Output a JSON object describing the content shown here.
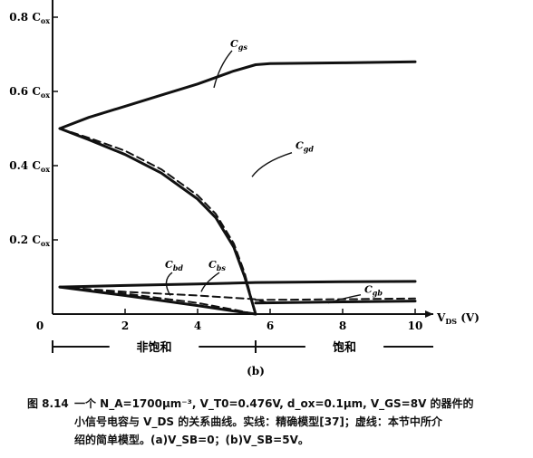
{
  "chart_data": {
    "type": "line",
    "x_axis": {
      "label": "V_DS (V)",
      "ticks": [
        0,
        2,
        4,
        6,
        8,
        10
      ],
      "range": [
        0,
        10.5
      ]
    },
    "y_axis": {
      "unit": "C_ox",
      "ticks": [
        {
          "value": 0.2,
          "label": "0.2 C_ox"
        },
        {
          "value": 0.4,
          "label": "0.4 C_ox"
        },
        {
          "value": 0.6,
          "label": "0.6 C_ox"
        },
        {
          "value": 0.8,
          "label": "0.8 C_ox"
        }
      ],
      "range": [
        0,
        0.85
      ]
    },
    "series": [
      {
        "name": "C_gs",
        "style": "solid",
        "x": [
          0.2,
          1,
          2,
          3,
          4,
          5,
          5.6,
          6,
          8,
          10
        ],
        "y": [
          0.5,
          0.53,
          0.56,
          0.59,
          0.62,
          0.655,
          0.672,
          0.675,
          0.677,
          0.68
        ]
      },
      {
        "name": "C_gd",
        "style": "solid",
        "x": [
          0.2,
          1,
          2,
          3,
          4,
          4.5,
          5,
          5.3,
          5.6
        ],
        "y": [
          0.5,
          0.47,
          0.43,
          0.38,
          0.31,
          0.26,
          0.18,
          0.1,
          0.0
        ]
      },
      {
        "name": "C_gd",
        "style": "dashed",
        "x": [
          0.2,
          1,
          2,
          3,
          4,
          4.5,
          5,
          5.3,
          5.6
        ],
        "y": [
          0.5,
          0.475,
          0.44,
          0.39,
          0.32,
          0.27,
          0.19,
          0.11,
          0.0
        ]
      },
      {
        "name": "C_bs",
        "style": "solid",
        "x": [
          0.2,
          2,
          4,
          5.6,
          8,
          10
        ],
        "y": [
          0.073,
          0.077,
          0.081,
          0.085,
          0.087,
          0.088
        ]
      },
      {
        "name": "C_bs",
        "style": "dashed",
        "x": [
          0.2,
          2,
          4,
          5.6,
          6
        ],
        "y": [
          0.073,
          0.06,
          0.05,
          0.04,
          0.028
        ]
      },
      {
        "name": "C_bd",
        "style": "solid",
        "x": [
          0.2,
          2,
          4,
          5,
          5.6
        ],
        "y": [
          0.073,
          0.05,
          0.023,
          0.008,
          0.0
        ]
      },
      {
        "name": "C_bd",
        "style": "dashed",
        "x": [
          0.2,
          2,
          4,
          5,
          5.6
        ],
        "y": [
          0.073,
          0.055,
          0.03,
          0.012,
          0.0
        ]
      },
      {
        "name": "C_gb",
        "style": "solid",
        "x": [
          5.6,
          8,
          10
        ],
        "y": [
          0.03,
          0.033,
          0.035
        ]
      },
      {
        "name": "C_gb",
        "style": "dashed",
        "x": [
          5.6,
          8,
          10
        ],
        "y": [
          0.038,
          0.04,
          0.042
        ]
      }
    ],
    "curve_labels": [
      {
        "text": "C_gs",
        "x": 4.9,
        "y": 0.72
      },
      {
        "text": "C_gd",
        "x": 6.7,
        "y": 0.445
      },
      {
        "text": "C_bd",
        "x": 3.1,
        "y": 0.125
      },
      {
        "text": "C_bs",
        "x": 4.3,
        "y": 0.125
      },
      {
        "text": "C_gb",
        "x": 8.6,
        "y": 0.057
      }
    ],
    "regions": [
      {
        "label": "非饱和",
        "from": 0,
        "to": 5.6
      },
      {
        "label": "饱和",
        "from": 5.6,
        "to": 10.5
      }
    ],
    "panel_label": "(b)"
  },
  "caption": {
    "number": "图 8.14",
    "line1": "一个 N_A=1700μm⁻³, V_T0=0.476V, d_ox=0.1μm, V_GS=8V 的器件的",
    "line2": "小信号电容与 V_DS 的关系曲线。实线：精确模型[37]；虚线：本节中所介",
    "line3": "绍的简单模型。(a)V_SB=0；(b)V_SB=5V。"
  }
}
